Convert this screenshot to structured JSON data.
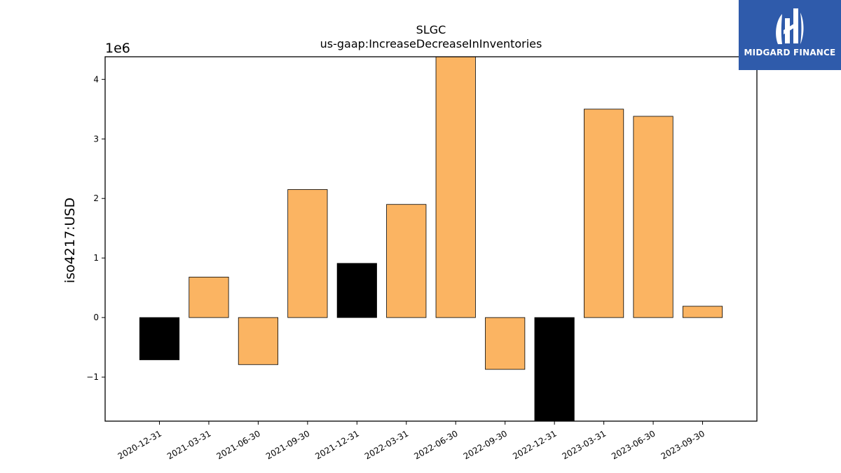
{
  "chart_data": {
    "type": "bar",
    "title": "SLGC",
    "subtitle": "us-gaap:IncreaseDecreaseInInventories",
    "ylabel": "iso4217:USD",
    "xlabel": "",
    "offset_label": "1e6",
    "categories": [
      "2020-12-31",
      "2021-03-31",
      "2021-06-30",
      "2021-09-30",
      "2021-12-31",
      "2022-03-31",
      "2022-06-30",
      "2022-09-30",
      "2022-12-31",
      "2023-03-31",
      "2023-06-30",
      "2023-09-30"
    ],
    "values": [
      -710000,
      680000,
      -790000,
      2150000,
      910000,
      1900000,
      4400000,
      -870000,
      -1800000,
      3500000,
      3380000,
      190000
    ],
    "bar_colors": [
      "#000000",
      "#fbb462",
      "#fbb462",
      "#fbb462",
      "#000000",
      "#fbb462",
      "#fbb462",
      "#fbb462",
      "#000000",
      "#fbb462",
      "#fbb462",
      "#fbb462"
    ],
    "ylim": [
      -1740000,
      4380000
    ],
    "yticks": [
      -1,
      0,
      1,
      2,
      3,
      4
    ],
    "ytick_labels": [
      "−1",
      "0",
      "1",
      "2",
      "3",
      "4"
    ],
    "grid": false,
    "legend": "none"
  },
  "logo": {
    "text": "MIDGARD FINANCE",
    "background": "#2f5bab"
  }
}
